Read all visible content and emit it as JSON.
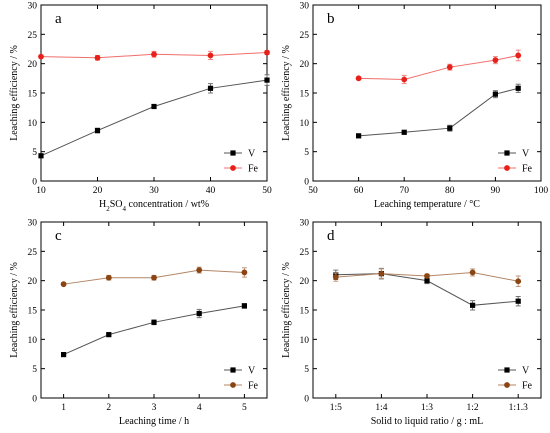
{
  "chart_data": [
    {
      "type": "line",
      "panel_label": "a",
      "xlabel": "H2SO4 concentration / wt%",
      "xlabel_parts": [
        "H",
        "2",
        "SO",
        "4",
        " concentration / wt%"
      ],
      "ylabel": "Leaching efficiency / %",
      "xlim": [
        10,
        50
      ],
      "ylim": [
        0,
        30
      ],
      "x_ticks": [
        10,
        20,
        30,
        40,
        50
      ],
      "y_ticks": [
        0,
        5,
        10,
        15,
        20,
        25,
        30
      ],
      "x_tick_labels": [
        "10",
        "20",
        "30",
        "40",
        "50"
      ],
      "y_tick_labels": [
        "0",
        "5",
        "10",
        "15",
        "20",
        "25",
        "30"
      ],
      "legend_position": "right-middle",
      "series": [
        {
          "name": "V",
          "x": [
            10,
            20,
            30,
            40,
            50
          ],
          "values": [
            4.3,
            8.6,
            12.7,
            15.8,
            17.2
          ],
          "error": [
            0.1,
            0.4,
            0.2,
            0.8,
            0.9
          ],
          "color": "#000000",
          "marker": "square"
        },
        {
          "name": "Fe",
          "x": [
            10,
            20,
            30,
            40,
            50
          ],
          "values": [
            21.2,
            21.0,
            21.6,
            21.4,
            21.9
          ],
          "error": [
            0.2,
            0.4,
            0.5,
            0.7,
            0.3
          ],
          "color": "#e8201a",
          "marker": "circle"
        }
      ]
    },
    {
      "type": "line",
      "panel_label": "b",
      "xlabel": "Leaching temperature / °C",
      "ylabel": "Leaching efficiency / %",
      "xlim": [
        50,
        100
      ],
      "ylim": [
        0,
        30
      ],
      "x_ticks": [
        50,
        60,
        70,
        80,
        90,
        100
      ],
      "y_ticks": [
        0,
        5,
        10,
        15,
        20,
        25,
        30
      ],
      "x_tick_labels": [
        "50",
        "60",
        "70",
        "80",
        "90",
        "100"
      ],
      "y_tick_labels": [
        "0",
        "5",
        "10",
        "15",
        "20",
        "25",
        "30"
      ],
      "legend_position": "right-middle",
      "series": [
        {
          "name": "V",
          "x": [
            60,
            70,
            80,
            90,
            95
          ],
          "values": [
            7.7,
            8.3,
            9.0,
            14.8,
            15.8
          ],
          "error": [
            0.2,
            0.2,
            0.5,
            0.6,
            0.7
          ],
          "color": "#000000",
          "marker": "square"
        },
        {
          "name": "Fe",
          "x": [
            60,
            70,
            80,
            90,
            95
          ],
          "values": [
            17.5,
            17.3,
            19.4,
            20.6,
            21.4
          ],
          "error": [
            0.2,
            0.7,
            0.5,
            0.6,
            0.9
          ],
          "color": "#e8201a",
          "marker": "circle"
        }
      ]
    },
    {
      "type": "line",
      "panel_label": "c",
      "xlabel": "Leaching time / h",
      "ylabel": "Leaching efficiency / %",
      "xlim": [
        0.5,
        5.5
      ],
      "ylim": [
        0,
        30
      ],
      "x_ticks": [
        1,
        2,
        3,
        4,
        5
      ],
      "y_ticks": [
        0,
        5,
        10,
        15,
        20,
        25,
        30
      ],
      "x_tick_labels": [
        "1",
        "2",
        "3",
        "4",
        "5"
      ],
      "y_tick_labels": [
        "0",
        "5",
        "10",
        "15",
        "20",
        "25",
        "30"
      ],
      "legend_position": "right-middle",
      "series": [
        {
          "name": "V",
          "x": [
            1,
            2,
            3,
            4,
            5
          ],
          "values": [
            7.4,
            10.8,
            12.9,
            14.4,
            15.7
          ],
          "error": [
            0.1,
            0.2,
            0.4,
            0.7,
            0.4
          ],
          "color": "#000000",
          "marker": "square"
        },
        {
          "name": "Fe",
          "x": [
            1,
            2,
            3,
            4,
            5
          ],
          "values": [
            19.4,
            20.5,
            20.5,
            21.8,
            21.4
          ],
          "error": [
            0.2,
            0.4,
            0.4,
            0.5,
            0.8
          ],
          "color": "#8b4513",
          "marker": "circle"
        }
      ]
    },
    {
      "type": "line",
      "panel_label": "d",
      "xlabel": "Solid to liquid ratio / g : mL",
      "ylabel": "Leaching efficiency / %",
      "xlim": [
        0.5,
        5.5
      ],
      "ylim": [
        0,
        30
      ],
      "x_ticks": [
        1,
        2,
        3,
        4,
        5
      ],
      "y_ticks": [
        0,
        5,
        10,
        15,
        20,
        25,
        30
      ],
      "x_tick_labels": [
        "1:5",
        "1:4",
        "1:3",
        "1:2",
        "1:1.3"
      ],
      "y_tick_labels": [
        "0",
        "5",
        "10",
        "15",
        "20",
        "25",
        "30"
      ],
      "legend_position": "right-middle",
      "series": [
        {
          "name": "V",
          "x": [
            1,
            2,
            3,
            4,
            5
          ],
          "values": [
            21.0,
            21.2,
            20.0,
            15.8,
            16.5
          ],
          "error": [
            0.8,
            0.9,
            0.5,
            0.8,
            0.8
          ],
          "color": "#000000",
          "marker": "square"
        },
        {
          "name": "Fe",
          "x": [
            1,
            2,
            3,
            4,
            5
          ],
          "values": [
            20.6,
            21.2,
            20.8,
            21.4,
            19.9
          ],
          "error": [
            0.7,
            0.8,
            0.3,
            0.6,
            0.9
          ],
          "color": "#8b4513",
          "marker": "circle"
        }
      ]
    }
  ]
}
